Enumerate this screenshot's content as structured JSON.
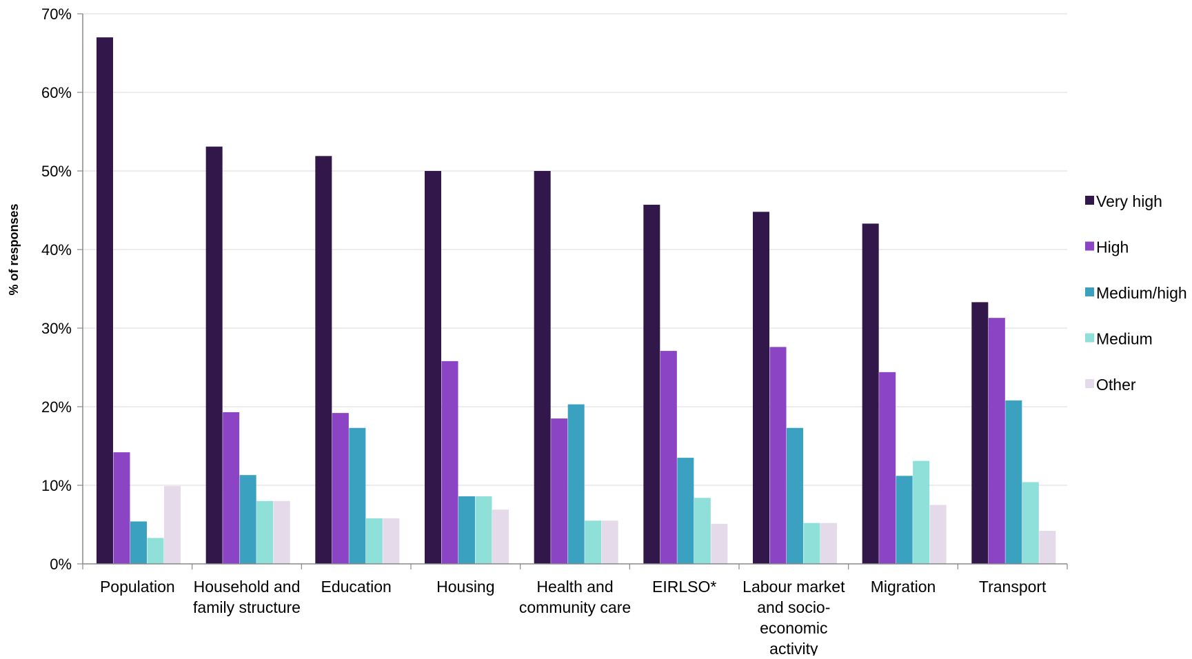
{
  "chart_data": {
    "type": "bar",
    "title": "",
    "xlabel": "",
    "ylabel": "% of responses",
    "ylim": [
      0,
      70
    ],
    "yticks": [
      "0%",
      "10%",
      "20%",
      "30%",
      "40%",
      "50%",
      "60%",
      "70%"
    ],
    "grid": true,
    "legend_position": "right",
    "categories": [
      "Population",
      "Household and family structure",
      "Education",
      "Housing",
      "Health and community care",
      "EIRLSO*",
      "Labour market and socio-economic activity",
      "Migration",
      "Transport"
    ],
    "category_lines": [
      [
        "Population"
      ],
      [
        "Household and",
        "family structure"
      ],
      [
        "Education"
      ],
      [
        "Housing"
      ],
      [
        "Health and",
        "community care"
      ],
      [
        "EIRLSO*"
      ],
      [
        "Labour market",
        "and socio-",
        "economic",
        "activity"
      ],
      [
        "Migration"
      ],
      [
        "Transport"
      ]
    ],
    "series": [
      {
        "name": "Very high",
        "color": "#32174a",
        "values": [
          67.0,
          53.1,
          51.9,
          50.0,
          50.0,
          45.7,
          44.8,
          43.3,
          33.3
        ]
      },
      {
        "name": "High",
        "color": "#8b44c4",
        "values": [
          14.2,
          19.3,
          19.2,
          25.8,
          18.5,
          27.1,
          27.6,
          24.4,
          31.3
        ]
      },
      {
        "name": "Medium/high",
        "color": "#3aa1c0",
        "values": [
          5.4,
          11.3,
          17.3,
          8.6,
          20.3,
          13.5,
          17.3,
          11.2,
          20.8
        ]
      },
      {
        "name": "Medium",
        "color": "#8fe0d8",
        "values": [
          3.3,
          8.0,
          5.8,
          8.6,
          5.5,
          8.4,
          5.2,
          13.1,
          10.4
        ]
      },
      {
        "name": "Other",
        "color": "#e5daea",
        "values": [
          9.9,
          8.0,
          5.8,
          6.9,
          5.5,
          5.1,
          5.2,
          7.5,
          4.2
        ]
      }
    ]
  }
}
